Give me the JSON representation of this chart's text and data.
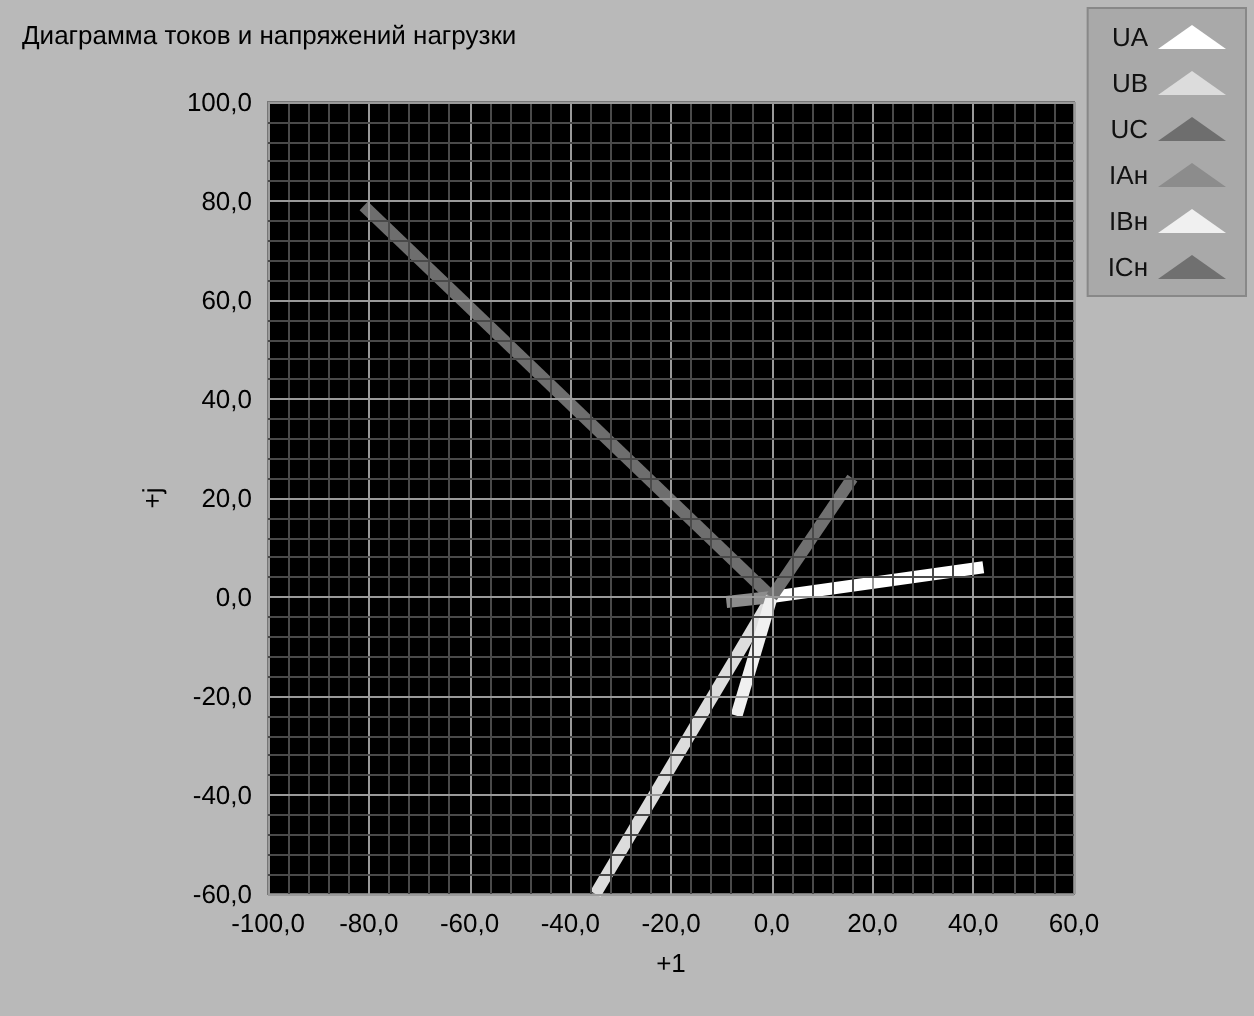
{
  "chart_data": {
    "type": "line",
    "title": "Диаграмма токов и напряжений нагрузки",
    "xlabel": "+1",
    "ylabel": "+j",
    "xlim": [
      -100,
      60
    ],
    "ylim": [
      -60,
      100
    ],
    "xticks": [
      {
        "value": -100,
        "label": "-100,0"
      },
      {
        "value": -80,
        "label": "-80,0"
      },
      {
        "value": -60,
        "label": "-60,0"
      },
      {
        "value": -40,
        "label": "-40,0"
      },
      {
        "value": -20,
        "label": "-20,0"
      },
      {
        "value": 0,
        "label": "0,0"
      },
      {
        "value": 20,
        "label": "20,0"
      },
      {
        "value": 40,
        "label": "40,0"
      },
      {
        "value": 60,
        "label": "60,0"
      }
    ],
    "yticks": [
      {
        "value": -60,
        "label": "-60,0"
      },
      {
        "value": -40,
        "label": "-40,0"
      },
      {
        "value": -20,
        "label": "-20,0"
      },
      {
        "value": 0,
        "label": "0,0"
      },
      {
        "value": 20,
        "label": "20,0"
      },
      {
        "value": 40,
        "label": "40,0"
      },
      {
        "value": 60,
        "label": "60,0"
      },
      {
        "value": 80,
        "label": "80,0"
      },
      {
        "value": 100,
        "label": "100,0"
      }
    ],
    "grid": true,
    "legend": "top right",
    "marker": "none",
    "line_style": "solid",
    "series": [
      {
        "name": "UA",
        "color": "#ffffff",
        "x": [
          0,
          42
        ],
        "values": [
          0,
          6
        ]
      },
      {
        "name": "UB",
        "color": "#dcdcdc",
        "x": [
          0,
          -35
        ],
        "values": [
          0,
          -60
        ]
      },
      {
        "name": "UC",
        "color": "#6e6e6e",
        "x": [
          0,
          -81
        ],
        "values": [
          0,
          79
        ]
      },
      {
        "name": "IAн",
        "color": "#8c8c8c",
        "x": [
          0,
          -9
        ],
        "values": [
          0,
          -1
        ]
      },
      {
        "name": "IBн",
        "color": "#f0f0f0",
        "x": [
          0,
          -7
        ],
        "values": [
          0,
          -24
        ]
      },
      {
        "name": "ICн",
        "color": "#707070",
        "x": [
          0,
          16
        ],
        "values": [
          0,
          24
        ]
      }
    ]
  }
}
